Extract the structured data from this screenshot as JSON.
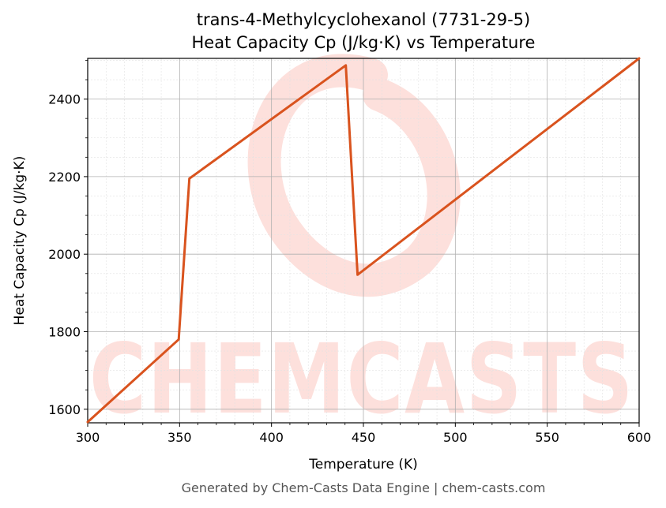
{
  "colors": {
    "line": "#d9531e",
    "watermark": "#fde0dc",
    "grid_major": "#b0b0b0",
    "grid_minor": "#e2e2e2",
    "footer_text": "#555555"
  },
  "watermark": {
    "text": "CHEMCASTS"
  },
  "footer": "Generated by Chem-Casts Data Engine | chem-casts.com",
  "chart_data": {
    "type": "line",
    "title": "trans-4-Methylcyclohexanol (7731-29-5)",
    "subtitle": "Heat Capacity Cp (J/kg·K) vs Temperature",
    "xlabel": "Temperature (K)",
    "ylabel": "Heat Capacity Cp (J/kg·K)",
    "xlim": [
      300,
      600
    ],
    "ylim": [
      1565,
      2505
    ],
    "x_ticks": [
      300,
      350,
      400,
      450,
      500,
      550,
      600
    ],
    "y_ticks": [
      1600,
      1800,
      2000,
      2200,
      2400
    ],
    "grid": true,
    "legend": "none",
    "series": [
      {
        "x": [
          300,
          349.5,
          355.3,
          440.4,
          446.8,
          600
        ],
        "y": [
          1567,
          1780,
          2195,
          2487,
          1947,
          2505
        ]
      }
    ]
  }
}
